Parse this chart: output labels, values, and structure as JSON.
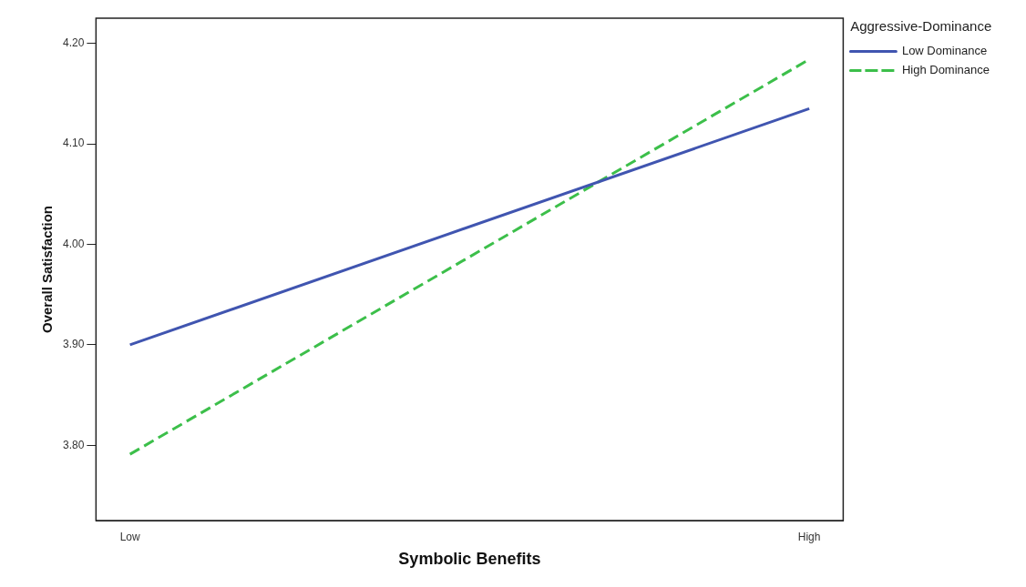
{
  "chart_data": {
    "type": "line",
    "xlabel": "Symbolic Benefits",
    "ylabel": "Overall Satisfaction",
    "legend_title": "Aggressive-Dominance",
    "categories": [
      "Low",
      "High"
    ],
    "series": [
      {
        "name": "Low Dominance",
        "color": "#4055b0",
        "values": [
          3.9,
          4.135
        ],
        "line_style": "solid"
      },
      {
        "name": "High Dominance",
        "color": "#3cbf4a",
        "values": [
          3.791,
          4.184
        ],
        "line_style": "dashed"
      }
    ],
    "ylim": [
      3.725,
      4.225
    ],
    "yticks": [
      {
        "value": 3.8,
        "label": "3.80"
      },
      {
        "value": 3.9,
        "label": "3.90"
      },
      {
        "value": 4.0,
        "label": "4.00"
      },
      {
        "value": 4.1,
        "label": "4.10"
      },
      {
        "value": 4.2,
        "label": "4.20"
      }
    ],
    "grid": false,
    "legend": "top right",
    "marker": "none"
  }
}
